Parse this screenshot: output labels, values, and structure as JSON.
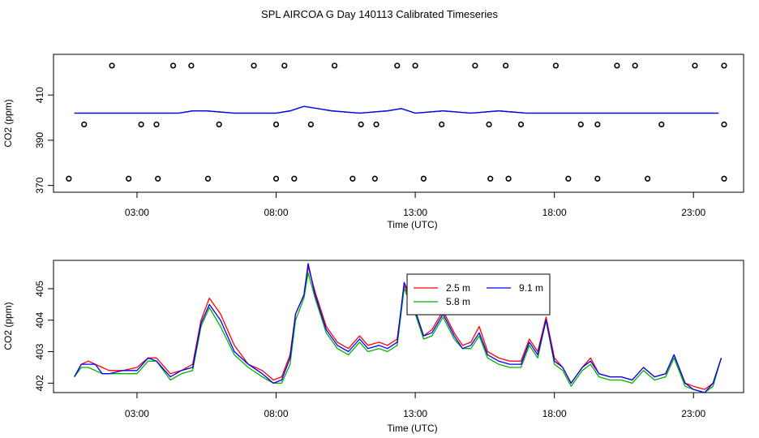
{
  "title": "SPL AIRCOA G  Day 140113  Calibrated Timeseries",
  "chart_data": [
    {
      "type": "line",
      "panel": "top",
      "xlabel": "Time (UTC)",
      "ylabel": "CO2 (ppm)",
      "xlim": [
        0,
        24.8
      ],
      "ylim": [
        367,
        428
      ],
      "xticks": [
        {
          "v": 3,
          "label": "03:00"
        },
        {
          "v": 8,
          "label": "08:00"
        },
        {
          "v": 13,
          "label": "13:00"
        },
        {
          "v": 18,
          "label": "18:00"
        },
        {
          "v": 23,
          "label": "23:00"
        }
      ],
      "yticks": [
        {
          "v": 370,
          "label": "370"
        },
        {
          "v": 390,
          "label": "390"
        },
        {
          "v": 410,
          "label": "410"
        }
      ],
      "series": [
        {
          "name": "2.5 m",
          "color": "#ff0000",
          "x": [
            0.75,
            2,
            3.5,
            4.5,
            5,
            5.5,
            6.5,
            7.5,
            8,
            8.5,
            9,
            9.5,
            10,
            11,
            12,
            12.5,
            13,
            14,
            15,
            16,
            17,
            18,
            19,
            20,
            21,
            22,
            23,
            23.9
          ],
          "y": [
            402,
            402,
            402,
            402,
            403,
            403,
            402,
            402,
            402,
            403,
            405,
            404,
            403,
            402,
            403,
            404,
            402,
            403,
            402,
            403,
            402,
            402,
            402,
            402,
            402,
            402,
            402,
            402
          ]
        },
        {
          "name": "5.8 m",
          "color": "#00b000",
          "x": [
            0.75,
            2,
            3.5,
            4.5,
            5,
            5.5,
            6.5,
            7.5,
            8,
            8.5,
            9,
            9.5,
            10,
            11,
            12,
            12.5,
            13,
            14,
            15,
            16,
            17,
            18,
            19,
            20,
            21,
            22,
            23,
            23.9
          ],
          "y": [
            402,
            402,
            402,
            402,
            403,
            403,
            402,
            402,
            402,
            403,
            405,
            404,
            403,
            402,
            403,
            404,
            402,
            403,
            402,
            403,
            402,
            402,
            402,
            402,
            402,
            402,
            402,
            402
          ]
        },
        {
          "name": "9.1 m",
          "color": "#0000ff",
          "x": [
            0.75,
            2,
            3.5,
            4.5,
            5,
            5.5,
            6.5,
            7.5,
            8,
            8.5,
            9,
            9.5,
            10,
            11,
            12,
            12.5,
            13,
            14,
            15,
            16,
            17,
            18,
            19,
            20,
            21,
            22,
            23,
            23.9
          ],
          "y": [
            402,
            402,
            402,
            402,
            403,
            403,
            402,
            402,
            402,
            403,
            405,
            404,
            403,
            402,
            403,
            404,
            402,
            403,
            402,
            403,
            402,
            402,
            402,
            402,
            402,
            402,
            402,
            402
          ]
        }
      ],
      "markers": {
        "y": [
          423,
          397,
          373
        ],
        "x": [
          [
            2.1,
            4.3,
            4.95,
            7.2,
            8.3,
            10.1,
            12.35,
            13,
            15.15,
            16.25,
            18.05,
            20.25,
            20.9,
            23.05,
            24.1
          ],
          [
            1.1,
            3.15,
            3.7,
            5.95,
            8.0,
            9.25,
            11.05,
            11.6,
            13.95,
            15.65,
            16.8,
            18.95,
            19.55,
            21.85,
            24.1
          ],
          [
            0.55,
            2.7,
            3.75,
            5.55,
            8.0,
            8.65,
            10.75,
            11.55,
            13.3,
            15.7,
            16.35,
            18.5,
            19.55,
            21.35,
            24.1
          ]
        ]
      }
    },
    {
      "type": "line",
      "panel": "bottom",
      "xlabel": "Time (UTC)",
      "ylabel": "CO2 (ppm)",
      "xlim": [
        0,
        24.8
      ],
      "ylim": [
        401.7,
        405.9
      ],
      "xticks": [
        {
          "v": 3,
          "label": "03:00"
        },
        {
          "v": 8,
          "label": "08:00"
        },
        {
          "v": 13,
          "label": "13:00"
        },
        {
          "v": 18,
          "label": "18:00"
        },
        {
          "v": 23,
          "label": "23:00"
        }
      ],
      "yticks": [
        {
          "v": 402,
          "label": "402"
        },
        {
          "v": 403,
          "label": "403"
        },
        {
          "v": 404,
          "label": "404"
        },
        {
          "v": 405,
          "label": "405"
        }
      ],
      "legend": {
        "position": "top-center",
        "entries": [
          {
            "name": "2.5 m",
            "color": "#ff0000"
          },
          {
            "name": "9.1 m",
            "color": "#0000ff"
          },
          {
            "name": "5.8 m",
            "color": "#00b000"
          }
        ]
      },
      "series": [
        {
          "name": "2.5 m",
          "color": "#ff0000",
          "x": [
            0.75,
            1,
            1.25,
            1.5,
            1.75,
            2,
            2.5,
            3,
            3.4,
            3.7,
            4.2,
            4.6,
            5,
            5.3,
            5.6,
            6.0,
            6.5,
            7.0,
            7.5,
            7.9,
            8.2,
            8.5,
            8.7,
            9.0,
            9.15,
            9.4,
            9.8,
            10.2,
            10.6,
            11.0,
            11.3,
            11.7,
            12.0,
            12.35,
            12.6,
            12.8,
            13.0,
            13.3,
            13.6,
            14.0,
            14.4,
            14.7,
            15.0,
            15.3,
            15.6,
            16.0,
            16.4,
            16.8,
            17.1,
            17.4,
            17.7,
            18.0,
            18.3,
            18.6,
            19.0,
            19.3,
            19.6,
            20.0,
            20.4,
            20.8,
            21.2,
            21.6,
            22.0,
            22.3,
            22.7,
            23.0,
            23.4,
            23.7,
            24.0
          ],
          "y": [
            402.2,
            402.6,
            402.7,
            402.6,
            402.5,
            402.4,
            402.4,
            402.5,
            402.8,
            402.8,
            402.3,
            402.4,
            402.6,
            404.0,
            404.7,
            404.2,
            403.2,
            402.6,
            402.4,
            402.1,
            402.2,
            402.9,
            404.2,
            404.8,
            405.7,
            404.9,
            403.8,
            403.3,
            403.1,
            403.5,
            403.2,
            403.3,
            403.2,
            403.4,
            405.1,
            404.7,
            404.3,
            403.5,
            403.7,
            404.3,
            403.6,
            403.2,
            403.3,
            403.8,
            403.0,
            402.8,
            402.7,
            402.7,
            403.4,
            403.0,
            404.1,
            402.8,
            402.5,
            402.0,
            402.5,
            402.8,
            402.3,
            402.2,
            402.2,
            402.1,
            402.5,
            402.2,
            402.3,
            402.9,
            402.0,
            401.9,
            401.8,
            402.0,
            402.8
          ]
        },
        {
          "name": "5.8 m",
          "color": "#00b000",
          "x": [
            0.75,
            1,
            1.25,
            1.5,
            1.75,
            2,
            2.5,
            3,
            3.4,
            3.7,
            4.2,
            4.6,
            5,
            5.3,
            5.6,
            6.0,
            6.5,
            7.0,
            7.5,
            7.9,
            8.2,
            8.5,
            8.7,
            9.0,
            9.15,
            9.4,
            9.8,
            10.2,
            10.6,
            11.0,
            11.3,
            11.7,
            12.0,
            12.35,
            12.6,
            12.8,
            13.0,
            13.3,
            13.6,
            14.0,
            14.4,
            14.7,
            15.0,
            15.3,
            15.6,
            16.0,
            16.4,
            16.8,
            17.1,
            17.4,
            17.7,
            18.0,
            18.3,
            18.6,
            19.0,
            19.3,
            19.6,
            20.0,
            20.4,
            20.8,
            21.2,
            21.6,
            22.0,
            22.3,
            22.7,
            23.0,
            23.4,
            23.7,
            24.0
          ],
          "y": [
            402.2,
            402.5,
            402.5,
            402.4,
            402.3,
            402.3,
            402.3,
            402.3,
            402.7,
            402.7,
            402.1,
            402.3,
            402.4,
            403.8,
            404.4,
            403.8,
            402.9,
            402.5,
            402.2,
            402.0,
            402.0,
            402.6,
            404.0,
            404.7,
            405.5,
            404.7,
            403.6,
            403.1,
            402.9,
            403.3,
            403.0,
            403.1,
            403.0,
            403.2,
            405.0,
            404.6,
            404.2,
            403.4,
            403.5,
            404.1,
            403.4,
            403.1,
            403.1,
            403.5,
            402.8,
            402.6,
            402.5,
            402.5,
            403.2,
            402.8,
            404.0,
            402.6,
            402.4,
            401.9,
            402.4,
            402.6,
            402.2,
            402.1,
            402.1,
            402.0,
            402.4,
            402.1,
            402.2,
            402.8,
            401.9,
            401.8,
            401.7,
            401.9,
            402.8
          ]
        },
        {
          "name": "9.1 m",
          "color": "#0000ff",
          "x": [
            0.75,
            1,
            1.25,
            1.5,
            1.75,
            2,
            2.5,
            3,
            3.4,
            3.7,
            4.2,
            4.6,
            5,
            5.3,
            5.6,
            6.0,
            6.5,
            7.0,
            7.5,
            7.9,
            8.2,
            8.5,
            8.7,
            9.0,
            9.15,
            9.4,
            9.8,
            10.2,
            10.6,
            11.0,
            11.3,
            11.7,
            12.0,
            12.35,
            12.6,
            12.8,
            13.0,
            13.3,
            13.6,
            14.0,
            14.4,
            14.7,
            15.0,
            15.3,
            15.6,
            16.0,
            16.4,
            16.8,
            17.1,
            17.4,
            17.7,
            18.0,
            18.3,
            18.6,
            19.0,
            19.3,
            19.6,
            20.0,
            20.4,
            20.8,
            21.2,
            21.6,
            22.0,
            22.3,
            22.7,
            23.0,
            23.4,
            23.7,
            24.0
          ],
          "y": [
            402.2,
            402.6,
            402.6,
            402.6,
            402.3,
            402.3,
            402.4,
            402.4,
            402.8,
            402.7,
            402.2,
            402.4,
            402.5,
            403.9,
            404.5,
            404.0,
            403.0,
            402.6,
            402.3,
            402.0,
            402.1,
            402.8,
            404.2,
            404.8,
            405.8,
            404.8,
            403.7,
            403.2,
            403.0,
            403.4,
            403.1,
            403.2,
            403.1,
            403.3,
            405.2,
            404.8,
            404.3,
            403.5,
            403.6,
            404.2,
            403.5,
            403.1,
            403.2,
            403.6,
            402.9,
            402.7,
            402.6,
            402.6,
            403.3,
            402.9,
            404.0,
            402.7,
            402.5,
            402.0,
            402.5,
            402.7,
            402.3,
            402.2,
            402.2,
            402.1,
            402.5,
            402.2,
            402.3,
            402.9,
            402.0,
            401.8,
            401.7,
            402.0,
            402.8
          ]
        }
      ]
    }
  ]
}
